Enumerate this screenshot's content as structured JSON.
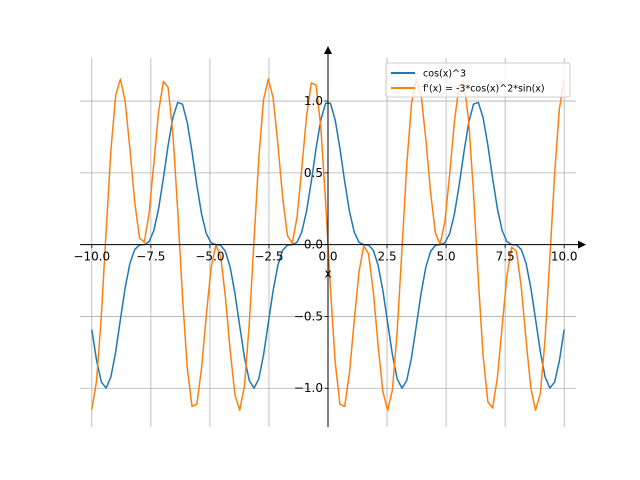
{
  "chart_data": {
    "type": "line",
    "title": "",
    "xlabel": "x",
    "ylabel": "",
    "xlim": [
      -10.5,
      10.5
    ],
    "ylim": [
      -1.27,
      1.3
    ],
    "grid": true,
    "legend_position": "top-right",
    "x_ticks": [
      -10.0,
      -7.5,
      -5.0,
      -2.5,
      0.0,
      2.5,
      5.0,
      7.5,
      10.0
    ],
    "x_tick_labels": [
      "−10.0",
      "−7.5",
      "−5.0",
      "−2.5",
      "0.0",
      "2.5",
      "5.0",
      "7.5",
      "10.0"
    ],
    "y_ticks": [
      -1.0,
      -0.5,
      0.0,
      0.5,
      1.0
    ],
    "y_tick_labels": [
      "−1.0",
      "−0.5",
      "0.0",
      "0.5",
      "1.0"
    ],
    "x": {
      "start": -10.0,
      "stop": 10.0,
      "count": 100
    },
    "series": [
      {
        "name": "cos(x)^3",
        "expression": "cos(x)^3",
        "color": "#1f77b4"
      },
      {
        "name": "f'(x) = -3*cos(x)^2*sin(x)",
        "expression": "-3*cos(x)^2*sin(x)",
        "color": "#ff7f0e"
      }
    ]
  }
}
